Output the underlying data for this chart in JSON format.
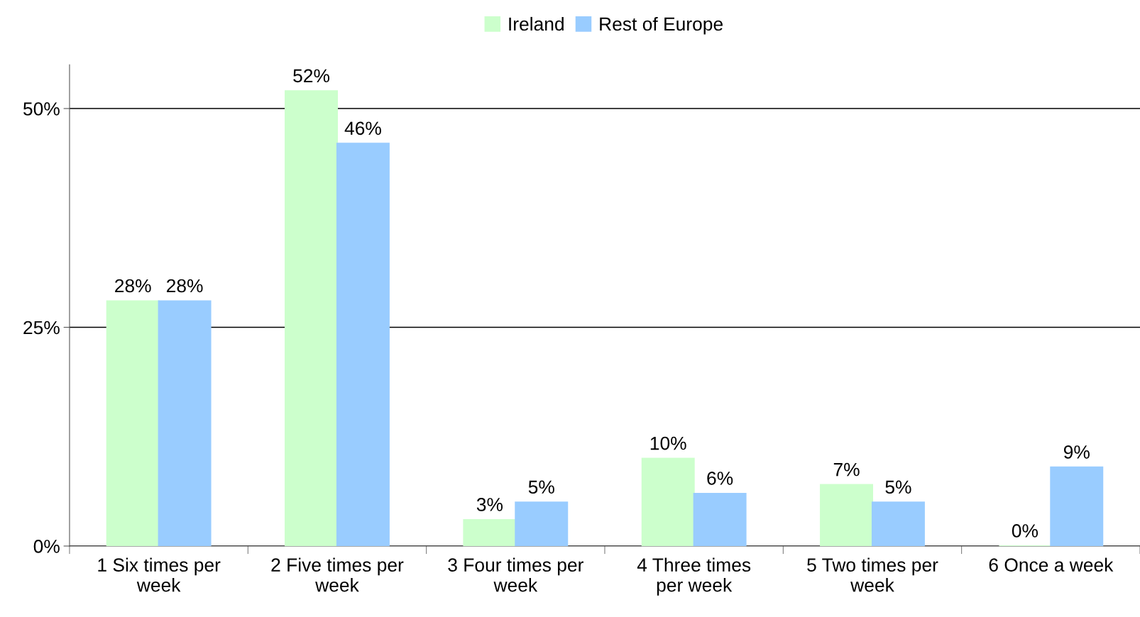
{
  "chart_data": {
    "type": "bar",
    "categories": [
      "1 Six times per week",
      "2 Five times per week",
      "3 Four times per week",
      "4 Three times per week",
      "5 Two times per week",
      "6 Once a week"
    ],
    "series": [
      {
        "name": "Ireland",
        "color": "#ccffcc",
        "values": [
          28,
          52,
          3,
          10,
          7,
          0
        ],
        "value_labels": [
          "28%",
          "52%",
          "3%",
          "10%",
          "7%",
          "0%"
        ]
      },
      {
        "name": "Rest of Europe",
        "color": "#99ccff",
        "values": [
          28,
          46,
          5,
          6,
          5,
          9
        ],
        "value_labels": [
          "28%",
          "46%",
          "5%",
          "6%",
          "5%",
          "9%"
        ]
      }
    ],
    "ylim": [
      0,
      55
    ],
    "yticks": [
      {
        "value": 0,
        "label": "0%"
      },
      {
        "value": 25,
        "label": "25%"
      },
      {
        "value": 50,
        "label": "50%"
      }
    ],
    "grid": "y",
    "legend": "top"
  }
}
